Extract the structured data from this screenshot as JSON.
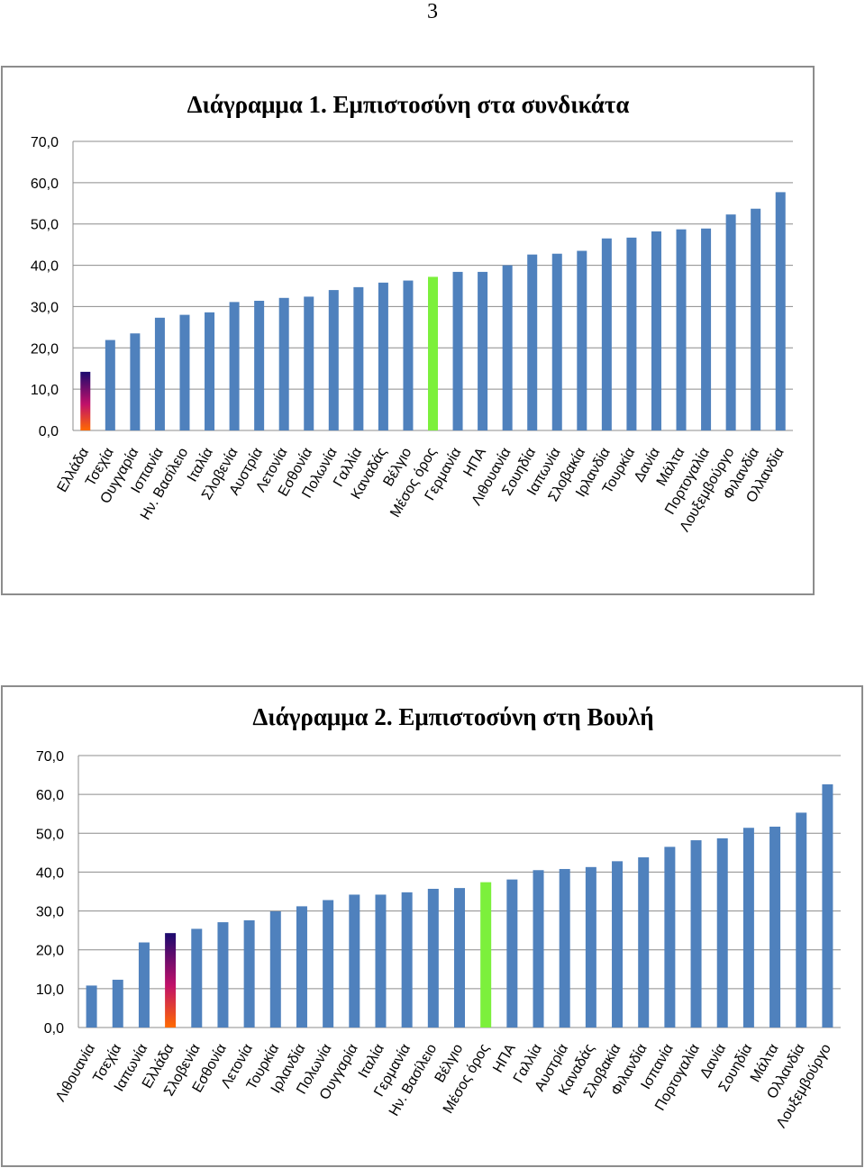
{
  "page_number": "3",
  "colors": {
    "bar": "#4f81bd",
    "mean_bar": "#7cf03c",
    "greece_top": "#1b0a6e",
    "greece_bottom": "#ff6a00",
    "grid": "#8c8c8c"
  },
  "chart_data": [
    {
      "type": "bar",
      "title": "Διάγραμμα 1. Εμπιστοσύνη στα συνδικάτα",
      "ylim": [
        0,
        70
      ],
      "yticks": [
        "0,0",
        "10,0",
        "20,0",
        "30,0",
        "40,0",
        "50,0",
        "60,0",
        "70,0"
      ],
      "grid": true,
      "highlight_mean": "Μέσος όρος",
      "highlight_gradient": "Ελλάδα",
      "categories": [
        "Ελλάδα",
        "Τσεχία",
        "Ουγγαρία",
        "Ισπανία",
        "Ην. Βασίλειο",
        "Ιταλία",
        "Σλοβενία",
        "Αυστρία",
        "Λετονία",
        "Εσθονία",
        "Πολωνία",
        "Γαλλία",
        "Καναδάς",
        "Βέλγιο",
        "Μέσος όρος",
        "Γερμανία",
        "ΗΠΑ",
        "Λιθουανία",
        "Σουηδία",
        "Ιαπωνία",
        "Σλοβακία",
        "Ιρλανδία",
        "Τουρκία",
        "Δανία",
        "Μάλτα",
        "Πορτογαλία",
        "Λουξεμβούργο",
        "Φιλανδία",
        "Ολλανδία"
      ],
      "values": [
        14.2,
        21.9,
        23.5,
        27.3,
        28.0,
        28.6,
        31.1,
        31.4,
        32.1,
        32.4,
        34.0,
        34.7,
        35.8,
        36.3,
        37.2,
        38.4,
        38.4,
        40.0,
        42.6,
        42.8,
        43.5,
        46.5,
        46.7,
        48.2,
        48.7,
        48.9,
        52.3,
        53.7,
        57.7
      ]
    },
    {
      "type": "bar",
      "title": "Διάγραμμα 2. Εμπιστοσύνη στη Βουλή",
      "ylim": [
        0,
        70
      ],
      "yticks": [
        "0,0",
        "10,0",
        "20,0",
        "30,0",
        "40,0",
        "50,0",
        "60,0",
        "70,0"
      ],
      "grid": true,
      "highlight_mean": "Μέσος όρος",
      "highlight_gradient": "Ελλάδα",
      "categories": [
        "Λιθουανία",
        "Τσεχία",
        "Ιαπωνία",
        "Ελλάδα",
        "Σλοβενία",
        "Εσθονία",
        "Λετονία",
        "Τουρκία",
        "Ιρλανδία",
        "Πολωνία",
        "Ουγγαρία",
        "Ιταλία",
        "Γερμανία",
        "Ην. Βασίλειο",
        "Βέλγιο",
        "Μέσος όρος",
        "ΗΠΑ",
        "Γαλλία",
        "Αυστρία",
        "Καναδάς",
        "Σλοβακία",
        "Φιλανδία",
        "Ισπανία",
        "Πορτογαλία",
        "Δανία",
        "Σουηδία",
        "Μάλτα",
        "Ολλανδία",
        "Λουξεμβούργο"
      ],
      "values": [
        10.8,
        12.3,
        21.9,
        24.3,
        25.4,
        27.1,
        27.6,
        29.9,
        31.2,
        32.8,
        34.2,
        34.2,
        34.8,
        35.7,
        35.9,
        37.4,
        38.1,
        40.5,
        40.8,
        41.3,
        42.8,
        43.8,
        46.5,
        48.2,
        48.7,
        51.4,
        51.7,
        55.3,
        62.6
      ]
    }
  ]
}
